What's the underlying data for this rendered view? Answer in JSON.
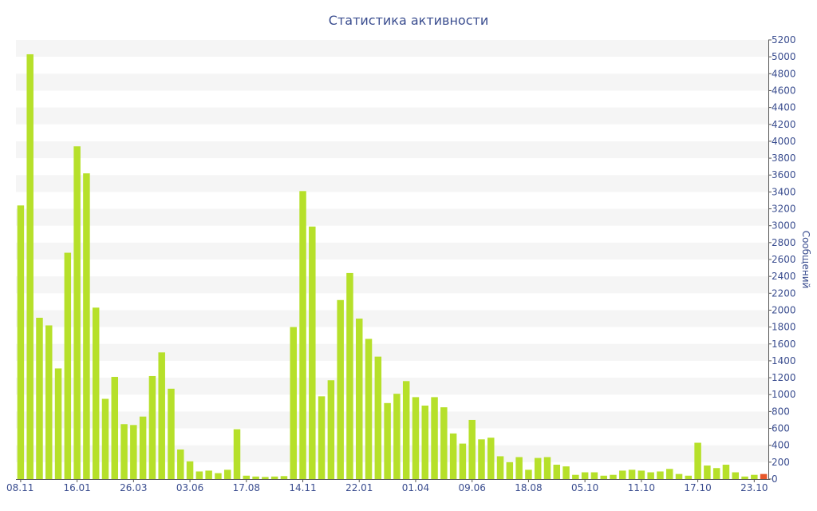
{
  "chart_data": {
    "type": "bar",
    "title": "Статистика активности",
    "xlabel": "",
    "ylabel": "Сообщений",
    "ylim": [
      0,
      5200
    ],
    "y_ticks": [
      0,
      200,
      400,
      600,
      800,
      1000,
      1200,
      1400,
      1600,
      1800,
      2000,
      2200,
      2400,
      2600,
      2800,
      3000,
      3200,
      3400,
      3600,
      3800,
      4000,
      4200,
      4400,
      4600,
      4800,
      5000,
      5200
    ],
    "y_axis_side": "right",
    "grid": "alternating horizontal bands",
    "x_tick_labels": [
      {
        "index": 0,
        "label": "08.11"
      },
      {
        "index": 6,
        "label": "16.01"
      },
      {
        "index": 12,
        "label": "26.03"
      },
      {
        "index": 18,
        "label": "03.06"
      },
      {
        "index": 24,
        "label": "17.08"
      },
      {
        "index": 30,
        "label": "14.11"
      },
      {
        "index": 36,
        "label": "22.01"
      },
      {
        "index": 42,
        "label": "01.04"
      },
      {
        "index": 48,
        "label": "09.06"
      },
      {
        "index": 54,
        "label": "18.08"
      },
      {
        "index": 60,
        "label": "05.10"
      },
      {
        "index": 66,
        "label": "11.10"
      },
      {
        "index": 72,
        "label": "17.10"
      },
      {
        "index": 78,
        "label": "23.10"
      }
    ],
    "values": [
      3240,
      5030,
      1910,
      1820,
      1310,
      2680,
      3940,
      3620,
      2030,
      950,
      1210,
      650,
      640,
      740,
      1220,
      1500,
      1070,
      350,
      210,
      90,
      100,
      70,
      110,
      590,
      40,
      30,
      25,
      30,
      35,
      1800,
      3410,
      2990,
      980,
      1170,
      2120,
      2440,
      1900,
      1660,
      1450,
      900,
      1010,
      1160,
      970,
      870,
      970,
      850,
      540,
      420,
      700,
      470,
      490,
      270,
      200,
      260,
      110,
      250,
      260,
      170,
      150,
      50,
      80,
      80,
      40,
      50,
      100,
      110,
      100,
      80,
      90,
      120,
      60,
      40,
      430,
      160,
      130,
      170,
      80,
      30,
      50,
      60
    ],
    "colors": {
      "bar": "#b6e02a",
      "bar_last": "#e8582a",
      "band": "#f5f5f5",
      "text": "#3a4d8f",
      "axis": "#555555"
    }
  }
}
